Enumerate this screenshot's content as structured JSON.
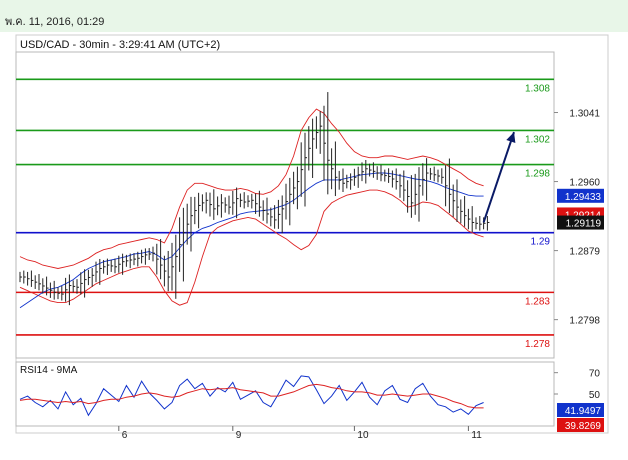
{
  "header": {
    "timestamp": "พ.ค. 11, 2016, 01:29"
  },
  "chart_data": {
    "type": "candlestick",
    "title": "USD/CAD - 30min - 3:29:41 AM (UTC+2)",
    "price_axis": {
      "range": [
        1.2753,
        1.3112
      ],
      "ticks": [
        {
          "value": 1.3041,
          "label": "1.3041"
        },
        {
          "value": 1.296,
          "label": "1.2960"
        },
        {
          "value": 1.2879,
          "label": "1.2879"
        },
        {
          "value": 1.2798,
          "label": "1.2798"
        }
      ]
    },
    "x_axis": {
      "ticks": [
        {
          "index": 13,
          "label": "6"
        },
        {
          "index": 28,
          "label": "9"
        },
        {
          "index": 44,
          "label": "10"
        },
        {
          "index": 59,
          "label": "11"
        }
      ]
    },
    "levels": [
      {
        "value": 1.308,
        "label": "1.308",
        "color": "#1a9a1a"
      },
      {
        "value": 1.302,
        "label": "1.302",
        "color": "#1a9a1a"
      },
      {
        "value": 1.298,
        "label": "1.298",
        "color": "#1a9a1a"
      },
      {
        "value": 1.29,
        "label": "1.29",
        "color": "#1010cc"
      },
      {
        "value": 1.283,
        "label": "1.283",
        "color": "#dd1111"
      },
      {
        "value": 1.278,
        "label": "1.278",
        "color": "#dd1111"
      }
    ],
    "price_badges": [
      {
        "value": 1.29433,
        "label": "1.29433",
        "bg": "#1133cc",
        "fg": "#ffffff"
      },
      {
        "value": 1.29214,
        "label": "1.29214",
        "bg": "#dd1111",
        "fg": "#ffffff"
      },
      {
        "value": 1.29119,
        "label": "1.29119",
        "bg": "#111111",
        "fg": "#ffffff"
      }
    ],
    "series": {
      "close": [
        1.2848,
        1.2844,
        1.284,
        1.2835,
        1.283,
        1.2828,
        1.2838,
        1.2836,
        1.2845,
        1.285,
        1.2858,
        1.2862,
        1.286,
        1.2866,
        1.2868,
        1.287,
        1.2874,
        1.2876,
        1.2862,
        1.2848,
        1.2872,
        1.29,
        1.292,
        1.2932,
        1.2938,
        1.2928,
        1.2935,
        1.293,
        1.294,
        1.2936,
        1.2938,
        1.293,
        1.2922,
        1.2915,
        1.2928,
        1.2945,
        1.296,
        1.2988,
        1.301,
        1.3025,
        1.2985,
        1.2965,
        1.2958,
        1.2962,
        1.2968,
        1.2975,
        1.2972,
        1.2968,
        1.2966,
        1.296,
        1.295,
        1.2935,
        1.2955,
        1.297,
        1.2968,
        1.2965,
        1.2945,
        1.293,
        1.292,
        1.2912,
        1.291,
        1.2912
      ],
      "ma": [
        1.2812,
        1.2818,
        1.2824,
        1.283,
        1.2834,
        1.2836,
        1.284,
        1.2845,
        1.2852,
        1.2858,
        1.2862,
        1.2866,
        1.2868,
        1.287,
        1.2872,
        1.2875,
        1.2876,
        1.2878,
        1.2874,
        1.2868,
        1.2872,
        1.2882,
        1.2892,
        1.29,
        1.2905,
        1.2908,
        1.2912,
        1.2915,
        1.2918,
        1.2922,
        1.2924,
        1.2925,
        1.2926,
        1.2927,
        1.293,
        1.2933,
        1.2938,
        1.2945,
        1.2952,
        1.2958,
        1.2962,
        1.2962,
        1.2962,
        1.2964,
        1.2966,
        1.2968,
        1.2969,
        1.297,
        1.297,
        1.2969,
        1.2967,
        1.2965,
        1.2963,
        1.2962,
        1.296,
        1.2957,
        1.2953,
        1.295,
        1.2947,
        1.2944,
        1.2943,
        1.2943
      ],
      "bb_upper": [
        1.2872,
        1.2868,
        1.2866,
        1.2862,
        1.286,
        1.2858,
        1.286,
        1.2862,
        1.2866,
        1.287,
        1.2876,
        1.288,
        1.2882,
        1.2886,
        1.2888,
        1.289,
        1.2892,
        1.2894,
        1.2892,
        1.2888,
        1.2905,
        1.293,
        1.295,
        1.2958,
        1.2958,
        1.2955,
        1.2952,
        1.295,
        1.295,
        1.2952,
        1.295,
        1.2946,
        1.2945,
        1.2948,
        1.2955,
        1.2968,
        1.299,
        1.302,
        1.3035,
        1.3045,
        1.304,
        1.3028,
        1.3018,
        1.3005,
        1.2995,
        1.299,
        1.2988,
        1.2988,
        1.299,
        1.299,
        1.2988,
        1.2986,
        1.2988,
        1.299,
        1.2988,
        1.2985,
        1.298,
        1.2975,
        1.297,
        1.2963,
        1.2958,
        1.2955
      ],
      "bb_lower": [
        1.2836,
        1.2832,
        1.2828,
        1.2824,
        1.282,
        1.2818,
        1.2818,
        1.2822,
        1.2828,
        1.2834,
        1.284,
        1.2844,
        1.2848,
        1.2852,
        1.2855,
        1.2858,
        1.286,
        1.286,
        1.2848,
        1.2832,
        1.282,
        1.2815,
        1.2818,
        1.2842,
        1.2872,
        1.2898,
        1.2906,
        1.291,
        1.2914,
        1.2916,
        1.2918,
        1.2916,
        1.291,
        1.2904,
        1.2898,
        1.2893,
        1.2886,
        1.288,
        1.2885,
        1.2898,
        1.2925,
        1.2935,
        1.294,
        1.2944,
        1.2946,
        1.2948,
        1.295,
        1.295,
        1.2948,
        1.2944,
        1.2938,
        1.293,
        1.2932,
        1.2936,
        1.2935,
        1.2932,
        1.2925,
        1.2918,
        1.291,
        1.2902,
        1.2898,
        1.2895
      ]
    },
    "arrow": {
      "from": {
        "index": 61,
        "value": 1.2912
      },
      "to": {
        "index": 65,
        "value": 1.3018
      },
      "color": "#0a1a66"
    },
    "rsi": {
      "label": "RSI14 - 9MA",
      "ticks": [
        {
          "value": 70,
          "label": "70"
        },
        {
          "value": 50,
          "label": "50"
        }
      ],
      "range": [
        20,
        80
      ],
      "values": [
        45,
        48,
        42,
        38,
        44,
        36,
        52,
        40,
        46,
        30,
        41,
        55,
        49,
        43,
        58,
        47,
        62,
        51,
        44,
        36,
        42,
        58,
        64,
        55,
        60,
        48,
        56,
        52,
        61,
        45,
        49,
        53,
        42,
        38,
        50,
        63,
        57,
        67,
        66,
        54,
        41,
        48,
        58,
        44,
        52,
        61,
        47,
        40,
        53,
        58,
        45,
        42,
        55,
        60,
        48,
        40,
        38,
        33,
        36,
        31,
        39,
        42
      ],
      "ma_values": [
        44,
        45,
        45,
        44,
        43,
        42,
        43,
        42,
        43,
        41,
        42,
        44,
        45,
        45,
        47,
        48,
        50,
        51,
        50,
        48,
        47,
        48,
        51,
        53,
        55,
        54,
        55,
        55,
        56,
        54,
        53,
        52,
        51,
        48,
        48,
        50,
        52,
        55,
        58,
        59,
        58,
        56,
        55,
        53,
        52,
        52,
        51,
        49,
        49,
        50,
        49,
        48,
        49,
        50,
        50,
        48,
        46,
        43,
        41,
        38,
        37,
        37
      ],
      "badges": [
        {
          "value": 41.9497,
          "label": "41.9497",
          "bg": "#1133cc",
          "fg": "#ffffff"
        },
        {
          "value": 39.8269,
          "label": "39.8269",
          "bg": "#dd1111",
          "fg": "#ffffff"
        }
      ]
    }
  }
}
